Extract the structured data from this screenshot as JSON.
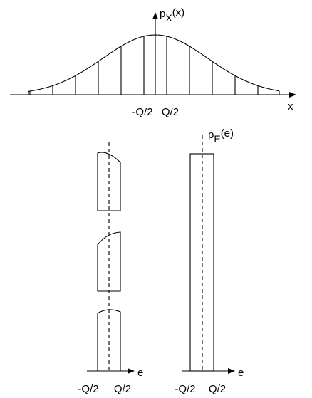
{
  "top_plot": {
    "y_axis_label": {
      "p": "p",
      "sub": "X",
      "arg": "(x)"
    },
    "x_axis_label": "x",
    "tick_labels": [
      "-Q/2",
      "Q/2"
    ]
  },
  "left_plot": {
    "x_axis_label": "e",
    "tick_labels": [
      "-Q/2",
      "Q/2"
    ]
  },
  "right_plot": {
    "y_axis_label": {
      "p": "p",
      "sub": "E",
      "arg": "(e)"
    },
    "x_axis_label": "e",
    "tick_labels": [
      "-Q/2",
      "Q/2"
    ]
  }
}
